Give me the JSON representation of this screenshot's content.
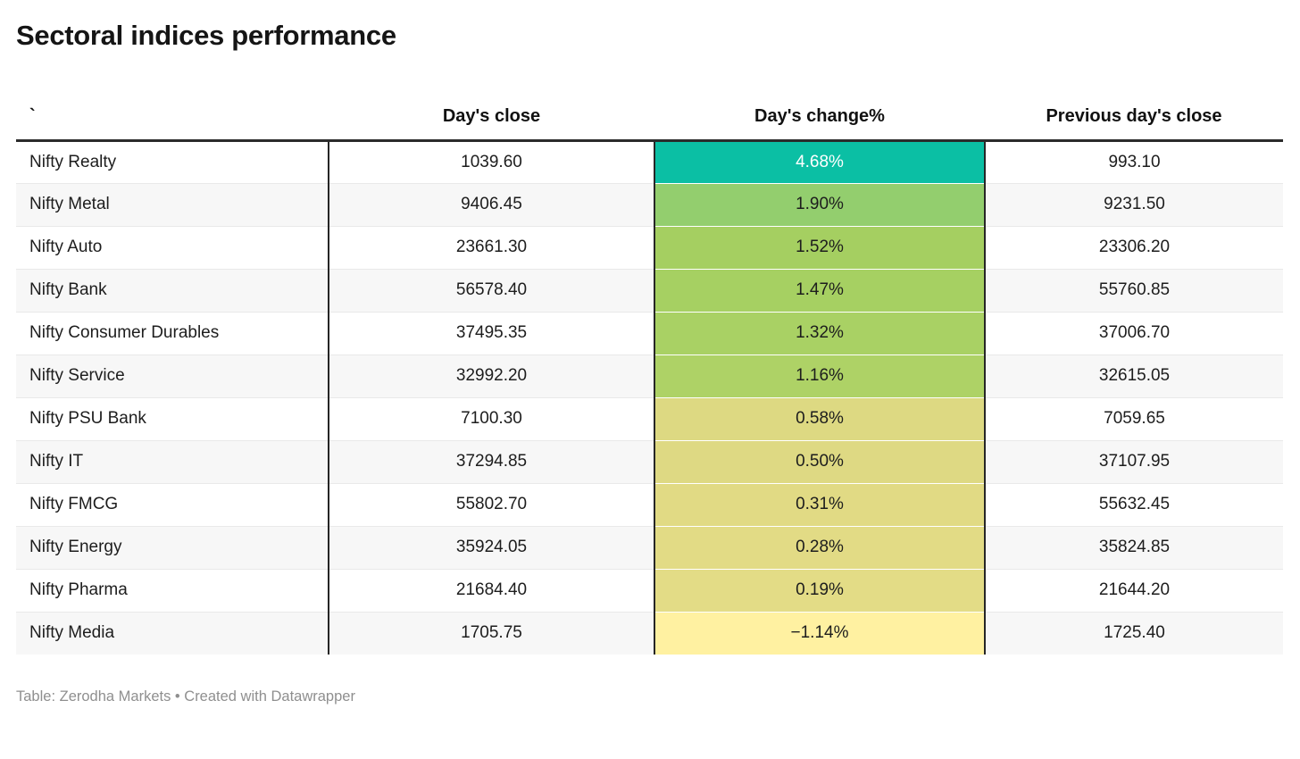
{
  "header": {
    "title": "Sectoral indices performance"
  },
  "table": {
    "columns": [
      "`",
      "Day's close",
      "Day's change%",
      "Previous day's close"
    ],
    "rows": [
      {
        "index": "Nifty Realty",
        "days_close": "1039.60",
        "days_change": "4.68%",
        "prev_close": "993.10",
        "change_bg": "#0bbfa4",
        "change_fg": "#ffffff"
      },
      {
        "index": "Nifty Metal",
        "days_close": "9406.45",
        "days_change": "1.90%",
        "prev_close": "9231.50",
        "change_bg": "#93ce6e",
        "change_fg": "#1d1d1d"
      },
      {
        "index": "Nifty Auto",
        "days_close": "23661.30",
        "days_change": "1.52%",
        "prev_close": "23306.20",
        "change_bg": "#a5cf61",
        "change_fg": "#1d1d1d"
      },
      {
        "index": "Nifty Bank",
        "days_close": "56578.40",
        "days_change": "1.47%",
        "prev_close": "55760.85",
        "change_bg": "#a6d062",
        "change_fg": "#1d1d1d"
      },
      {
        "index": "Nifty Consumer Durables",
        "days_close": "37495.35",
        "days_change": "1.32%",
        "prev_close": "37006.70",
        "change_bg": "#a9d164",
        "change_fg": "#1d1d1d"
      },
      {
        "index": "Nifty Service",
        "days_close": "32992.20",
        "days_change": "1.16%",
        "prev_close": "32615.05",
        "change_bg": "#aed266",
        "change_fg": "#1d1d1d"
      },
      {
        "index": "Nifty PSU Bank",
        "days_close": "7100.30",
        "days_change": "0.58%",
        "prev_close": "7059.65",
        "change_bg": "#ddd982",
        "change_fg": "#1d1d1d"
      },
      {
        "index": "Nifty IT",
        "days_close": "37294.85",
        "days_change": "0.50%",
        "prev_close": "37107.95",
        "change_bg": "#ded983",
        "change_fg": "#1d1d1d"
      },
      {
        "index": "Nifty FMCG",
        "days_close": "55802.70",
        "days_change": "0.31%",
        "prev_close": "55632.45",
        "change_bg": "#e1da84",
        "change_fg": "#1d1d1d"
      },
      {
        "index": "Nifty Energy",
        "days_close": "35924.05",
        "days_change": "0.28%",
        "prev_close": "35824.85",
        "change_bg": "#e2db85",
        "change_fg": "#1d1d1d"
      },
      {
        "index": "Nifty Pharma",
        "days_close": "21684.40",
        "days_change": "0.19%",
        "prev_close": "21644.20",
        "change_bg": "#e3dc86",
        "change_fg": "#1d1d1d"
      },
      {
        "index": "Nifty Media",
        "days_close": "1705.75",
        "days_change": "−1.14%",
        "prev_close": "1725.40",
        "change_bg": "#fff1a1",
        "change_fg": "#1d1d1d"
      }
    ]
  },
  "footer": {
    "text": "Table: Zerodha Markets • Created with Datawrapper"
  },
  "colors": {
    "header_border": "#2b2b2b",
    "column_divider": "#262626",
    "row_stripe": "#f7f7f7",
    "row_separator": "#e9e9e9",
    "footer_text": "#8f8f8f",
    "body_text": "#1d1d1d",
    "top_cell": "#0bbfa4",
    "bottom_cell": "#fff1a1"
  },
  "chart_data": {
    "type": "table",
    "title": "Sectoral indices performance",
    "columns": [
      "`",
      "Day's close",
      "Day's change%",
      "Previous day's close"
    ],
    "rows": [
      [
        "Nifty Realty",
        1039.6,
        4.68,
        993.1
      ],
      [
        "Nifty Metal",
        9406.45,
        1.9,
        9231.5
      ],
      [
        "Nifty Auto",
        23661.3,
        1.52,
        23306.2
      ],
      [
        "Nifty Bank",
        56578.4,
        1.47,
        55760.85
      ],
      [
        "Nifty Consumer Durables",
        37495.35,
        1.32,
        37006.7
      ],
      [
        "Nifty Service",
        32992.2,
        1.16,
        32615.05
      ],
      [
        "Nifty PSU Bank",
        7100.3,
        0.58,
        7059.65
      ],
      [
        "Nifty IT",
        37294.85,
        0.5,
        37107.95
      ],
      [
        "Nifty FMCG",
        55802.7,
        0.31,
        55632.45
      ],
      [
        "Nifty Energy",
        35924.05,
        0.28,
        35824.85
      ],
      [
        "Nifty Pharma",
        21684.4,
        0.19,
        21644.2
      ],
      [
        "Nifty Media",
        1705.75,
        -1.14,
        1725.4
      ]
    ],
    "heatmap_column": "Day's change%",
    "heatmap_scale": "green (high) to yellow (low), top value teal with white text",
    "legend_position": "none",
    "grid": "row stripes with black column dividers around heatmap column"
  }
}
